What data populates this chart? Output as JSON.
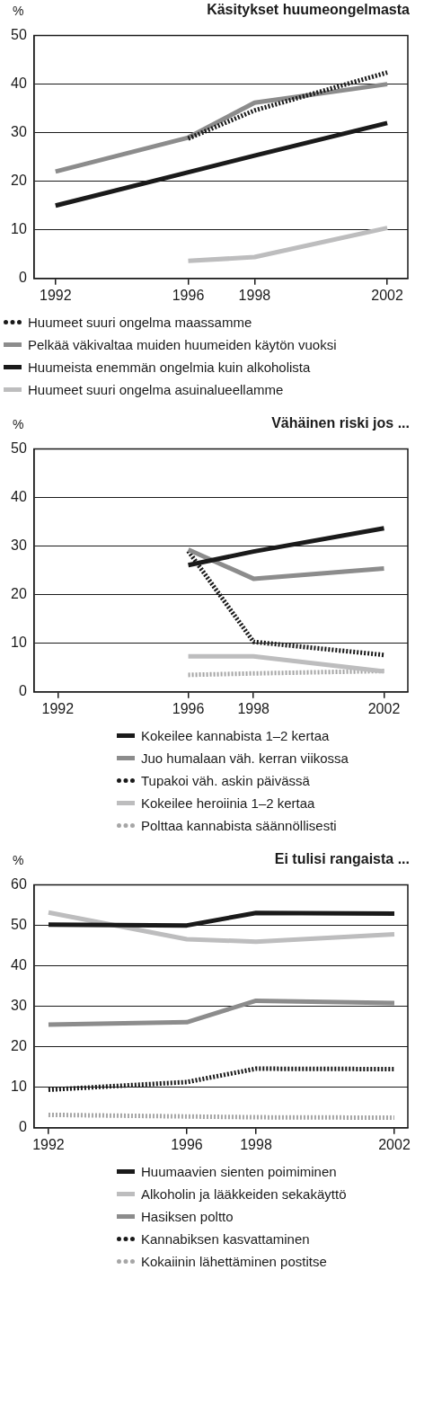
{
  "chart_data": [
    {
      "type": "line",
      "title": "Käsitykset huumeongelmasta",
      "ylabel": "%",
      "xlim": [
        1991.35,
        2002.62
      ],
      "xticks": [
        1992,
        1996,
        1998,
        2002
      ],
      "ylim": [
        0,
        50
      ],
      "yticks": [
        0,
        10,
        20,
        30,
        40,
        50
      ],
      "grid": "y",
      "legend": "bottom",
      "marker": "none",
      "series": [
        {
          "name": "Huumeet suuri ongelma maassamme",
          "color": "#1a1a1a",
          "line_style": "dotted",
          "x": [
            1996,
            1998,
            2002
          ],
          "values": [
            28.8,
            34.6,
            42.4
          ]
        },
        {
          "name": "Pelkää väkivaltaa muiden huumeiden käytön vuoksi",
          "color": "#8c8c8c",
          "line_style": "solid",
          "x": [
            1992,
            1996,
            1998,
            2002
          ],
          "values": [
            22.0,
            29.0,
            36.2,
            40.0
          ]
        },
        {
          "name": "Huumeista enemmän ongelmia kuin alkoholista",
          "color": "#1a1a1a",
          "line_style": "solid",
          "x": [
            1992,
            1998,
            2002
          ],
          "values": [
            15.0,
            25.3,
            32.0
          ]
        },
        {
          "name": "Huumeet suuri ongelma asuinalueellamme",
          "color": "#bdbdbe",
          "line_style": "solid",
          "x": [
            1996,
            1998,
            2002
          ],
          "values": [
            3.6,
            4.4,
            10.4
          ]
        }
      ]
    },
    {
      "type": "line",
      "title": "Vähäinen riski jos ...",
      "ylabel": "%",
      "xlim": [
        1991.27,
        2002.73
      ],
      "xticks": [
        1992,
        1996,
        1998,
        2002
      ],
      "ylim": [
        0,
        50
      ],
      "yticks": [
        0,
        10,
        20,
        30,
        40,
        50
      ],
      "grid": "y",
      "legend": "bottom",
      "marker": "none",
      "series": [
        {
          "name": "Kokeilee  kannabista 1–2 kertaa",
          "color": "#1a1a1a",
          "line_style": "solid",
          "x": [
            1996,
            1998,
            2002
          ],
          "values": [
            26.1,
            28.9,
            33.7
          ]
        },
        {
          "name": "Juo humalaan väh. kerran viikossa",
          "color": "#8c8c8c",
          "line_style": "solid",
          "x": [
            1996,
            1998,
            2002
          ],
          "values": [
            29.3,
            23.3,
            25.4
          ]
        },
        {
          "name": "Tupakoi väh. askin päivässä",
          "color": "#1a1a1a",
          "line_style": "dotted",
          "x": [
            1996,
            1998,
            2002
          ],
          "values": [
            29.0,
            10.3,
            7.6
          ]
        },
        {
          "name": "Kokeilee heroiinia 1–2 kertaa",
          "color": "#bdbdbe",
          "line_style": "solid",
          "x": [
            1996,
            1998,
            2002
          ],
          "values": [
            7.3,
            7.3,
            4.2
          ]
        },
        {
          "name": "Polttaa kannabista säännöllisesti",
          "color": "#a6a6a6",
          "line_style": "dotted",
          "x": [
            1996,
            1998,
            2002
          ],
          "values": [
            3.5,
            3.8,
            4.3
          ]
        }
      ]
    },
    {
      "type": "line",
      "title": "Ei tulisi rangaista ...",
      "ylabel": "%",
      "xlim": [
        1991.58,
        2002.39
      ],
      "xticks": [
        1992,
        1996,
        1998,
        2002
      ],
      "ylim": [
        0,
        60
      ],
      "yticks": [
        0,
        10,
        20,
        30,
        40,
        50,
        60
      ],
      "grid": "y",
      "legend": "bottom",
      "marker": "none",
      "series": [
        {
          "name": "Huumaavien sienten poimiminen",
          "color": "#1a1a1a",
          "line_style": "solid",
          "x": [
            1992,
            1996,
            1998,
            2002
          ],
          "values": [
            50.2,
            50.0,
            53.1,
            52.9
          ]
        },
        {
          "name": "Alkoholin ja lääkkeiden sekakäyttö",
          "color": "#bdbdbe",
          "line_style": "solid",
          "x": [
            1992,
            1996,
            1998,
            2002
          ],
          "values": [
            53.2,
            46.6,
            46.0,
            47.8
          ]
        },
        {
          "name": "Hasiksen poltto",
          "color": "#8c8c8c",
          "line_style": "solid",
          "x": [
            1992,
            1996,
            1998,
            2002
          ],
          "values": [
            25.5,
            26.1,
            31.4,
            30.8
          ]
        },
        {
          "name": "Kannabiksen kasvattaminen",
          "color": "#1a1a1a",
          "line_style": "dotted",
          "x": [
            1992,
            1996,
            1998,
            2002
          ],
          "values": [
            9.4,
            11.3,
            14.6,
            14.5
          ]
        },
        {
          "name": "Kokaiinin lähettäminen postitse",
          "color": "#a6a6a6",
          "line_style": "dotted",
          "x": [
            1992,
            1996,
            1998,
            2002
          ],
          "values": [
            3.2,
            2.8,
            2.6,
            2.5
          ]
        }
      ]
    }
  ]
}
